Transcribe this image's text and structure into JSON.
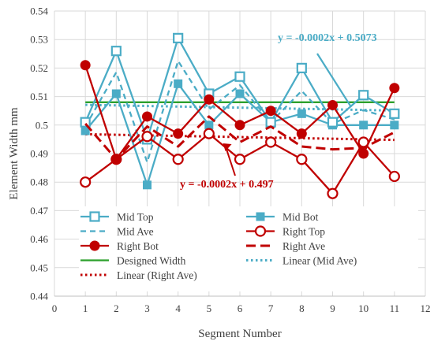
{
  "chart_data": {
    "type": "line",
    "xlabel": "Segment Number",
    "ylabel": "Element Width mm",
    "xlim": [
      0,
      12
    ],
    "ylim": [
      0.44,
      0.54
    ],
    "x_ticks": [
      "0",
      "1",
      "2",
      "3",
      "4",
      "5",
      "6",
      "7",
      "8",
      "9",
      "10",
      "11",
      "12"
    ],
    "y_ticks": [
      "0.44",
      "0.45",
      "0.46",
      "0.47",
      "0.48",
      "0.49",
      "0.5",
      "0.51",
      "0.52",
      "0.53",
      "0.54"
    ],
    "grid": true,
    "legend_position": "bottom-inside",
    "x": [
      1,
      2,
      3,
      4,
      5,
      6,
      7,
      8,
      9,
      10,
      11
    ],
    "series": [
      {
        "name": "Mid Top",
        "values": [
          0.501,
          0.526,
          0.495,
          0.5305,
          0.511,
          0.517,
          0.501,
          0.52,
          0.501,
          0.5105,
          0.504
        ],
        "color": "#4bacc6",
        "style": "solid",
        "marker": "open-square"
      },
      {
        "name": "Mid Bot",
        "values": [
          0.498,
          0.511,
          0.479,
          0.5145,
          0.5,
          0.511,
          0.501,
          0.504,
          0.5,
          0.5,
          0.5
        ],
        "color": "#4bacc6",
        "style": "solid",
        "marker": "filled-square"
      },
      {
        "name": "Mid Ave",
        "values": [
          0.4995,
          0.5185,
          0.487,
          0.5225,
          0.5055,
          0.514,
          0.501,
          0.512,
          0.5005,
          0.50525,
          0.502
        ],
        "color": "#4bacc6",
        "style": "dash",
        "marker": "none"
      },
      {
        "name": "Right Top",
        "values": [
          0.48,
          0.488,
          0.496,
          0.488,
          0.497,
          0.488,
          0.494,
          0.488,
          0.476,
          0.494,
          0.482
        ],
        "color": "#c00000",
        "style": "solid",
        "marker": "open-circle"
      },
      {
        "name": "Right Bot",
        "values": [
          0.521,
          0.488,
          0.503,
          0.497,
          0.509,
          0.5,
          0.505,
          0.497,
          0.507,
          0.49,
          0.513
        ],
        "color": "#c00000",
        "style": "solid",
        "marker": "filled-circle"
      },
      {
        "name": "Right Ave",
        "values": [
          0.5005,
          0.488,
          0.4995,
          0.4925,
          0.503,
          0.494,
          0.4995,
          0.4925,
          0.4915,
          0.492,
          0.4975
        ],
        "color": "#c00000",
        "style": "long-dash",
        "marker": "none"
      },
      {
        "name": "Designed Width",
        "values": [
          0.508,
          0.508,
          0.508,
          0.508,
          0.508,
          0.508,
          0.508,
          0.508,
          0.508,
          0.508,
          0.508
        ],
        "color": "#2ca02c",
        "style": "solid",
        "marker": "none"
      },
      {
        "name": "Linear (Mid Ave)",
        "values": [
          0.5071,
          0.5069,
          0.5067,
          0.5065,
          0.5063,
          0.5061,
          0.5059,
          0.5057,
          0.5055,
          0.5053,
          0.5051
        ],
        "color": "#4bacc6",
        "style": "dot",
        "marker": "none"
      },
      {
        "name": "Linear (Right Ave)",
        "values": [
          0.4968,
          0.4966,
          0.4964,
          0.4962,
          0.496,
          0.4958,
          0.4956,
          0.4954,
          0.4952,
          0.495,
          0.4948
        ],
        "color": "#c00000",
        "style": "dot",
        "marker": "none"
      }
    ],
    "annotations": [
      {
        "text": "y = -0.0002x + 0.5073",
        "color": "#4bacc6",
        "arrow_to": [
          9.6,
          0.5055
        ]
      },
      {
        "text": "y = -0.0002x + 0.497",
        "color": "#c00000",
        "arrow_to": [
          5.3,
          0.4958
        ]
      }
    ]
  }
}
